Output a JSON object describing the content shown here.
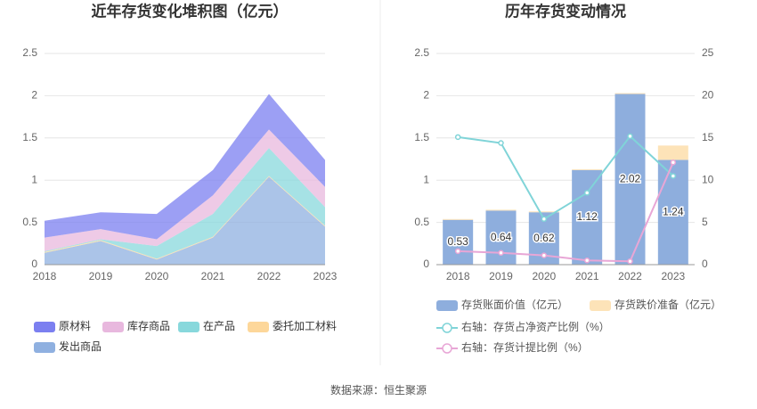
{
  "chart_data": [
    {
      "type": "area",
      "stacked": true,
      "title": "近年存货变化堆积图（亿元）",
      "categories": [
        "2018",
        "2019",
        "2020",
        "2021",
        "2022",
        "2023"
      ],
      "series": [
        {
          "name": "原材料",
          "color": "#7b7ff0",
          "values": [
            0.2,
            0.2,
            0.3,
            0.3,
            0.42,
            0.32
          ]
        },
        {
          "name": "库存商品",
          "color": "#e8b8de",
          "values": [
            0.16,
            0.12,
            0.08,
            0.22,
            0.22,
            0.24
          ]
        },
        {
          "name": "在产品",
          "color": "#88d8dc",
          "values": [
            0.01,
            0.01,
            0.15,
            0.27,
            0.33,
            0.22
          ]
        },
        {
          "name": "委托加工材料",
          "color": "#fdd79a",
          "values": [
            0.01,
            0.01,
            0.01,
            0.01,
            0.01,
            0.01
          ]
        },
        {
          "name": "发出商品",
          "color": "#8fb0e0",
          "values": [
            0.14,
            0.28,
            0.06,
            0.32,
            1.04,
            0.45
          ]
        }
      ],
      "ylim": [
        0,
        2.5
      ],
      "yticks": [
        0,
        0.5,
        1,
        1.5,
        2,
        2.5
      ],
      "grid": true
    },
    {
      "type": "bar",
      "stacked": true,
      "title": "历年存货变动情况",
      "categories": [
        "2018",
        "2019",
        "2020",
        "2021",
        "2022",
        "2023"
      ],
      "series": [
        {
          "name": "存货账面价值（亿元）",
          "color": "#8eaedd",
          "values": [
            0.53,
            0.64,
            0.62,
            1.12,
            2.02,
            1.24
          ]
        },
        {
          "name": "存货跌价准备（亿元）",
          "color": "#fde3b8",
          "values": [
            0.01,
            0.01,
            0.01,
            0.01,
            0.01,
            0.17
          ]
        },
        {
          "name": "右轴：存货占净资产比例（%）",
          "type": "line",
          "axis": "y2",
          "color": "#80d4d8",
          "values": [
            15.1,
            14.4,
            5.4,
            8.5,
            15.2,
            10.5
          ]
        },
        {
          "name": "右轴：存货计提比例（%）",
          "type": "line",
          "axis": "y2",
          "color": "#e8a6d6",
          "values": [
            1.6,
            1.4,
            1.1,
            0.5,
            0.4,
            12.1
          ]
        }
      ],
      "ylim": [
        0,
        2.5
      ],
      "yticks": [
        0,
        0.5,
        1,
        1.5,
        2,
        2.5
      ],
      "y2lim": [
        0,
        25
      ],
      "y2ticks": [
        0,
        5,
        10,
        15,
        20,
        25
      ],
      "grid": true
    }
  ],
  "source": "数据来源：恒生聚源"
}
